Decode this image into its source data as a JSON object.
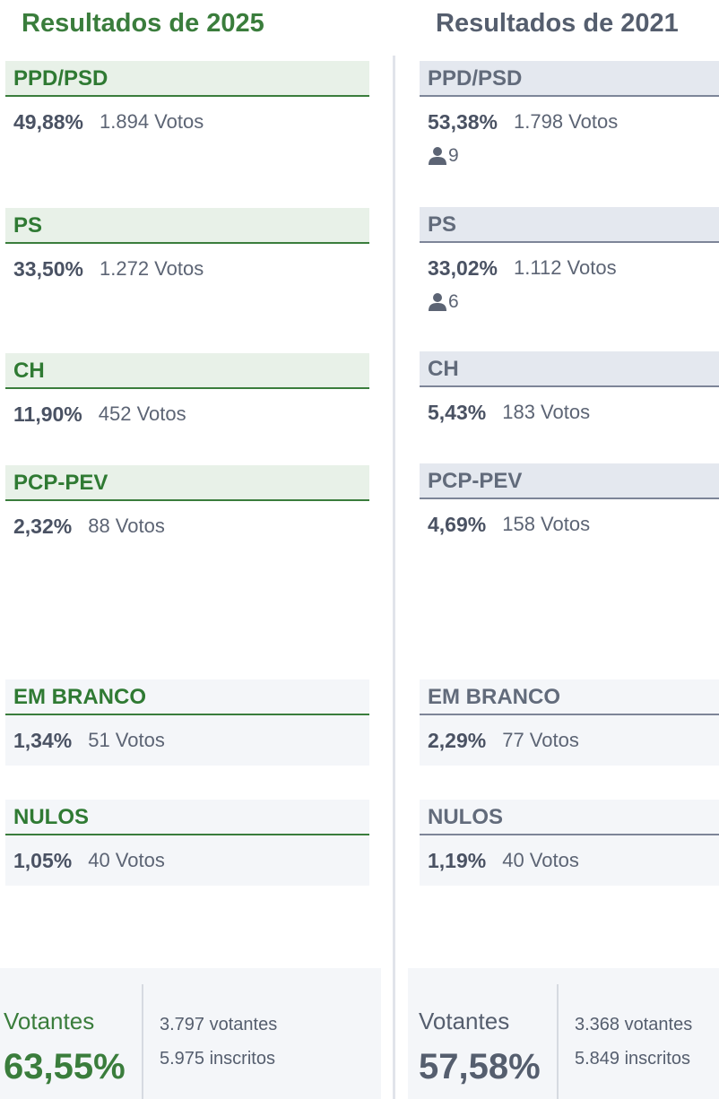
{
  "left": {
    "title": "Resultados de 2025",
    "parties": [
      {
        "name": "PPD/PSD",
        "pct": "49,88%",
        "votes": "1.894 Votos"
      },
      {
        "name": "PS",
        "pct": "33,50%",
        "votes": "1.272 Votos"
      },
      {
        "name": "CH",
        "pct": "11,90%",
        "votes": "452 Votos"
      },
      {
        "name": "PCP-PEV",
        "pct": "2,32%",
        "votes": "88 Votos"
      }
    ],
    "blank": {
      "name": "EM BRANCO",
      "pct": "1,34%",
      "votes": "51 Votos"
    },
    "null": {
      "name": "NULOS",
      "pct": "1,05%",
      "votes": "40 Votos"
    },
    "summary": {
      "label": "Votantes",
      "pct": "63,55%",
      "voters": "3.797 votantes",
      "registered": "5.975 inscritos"
    }
  },
  "right": {
    "title": "Resultados de 2021",
    "parties": [
      {
        "name": "PPD/PSD",
        "pct": "53,38%",
        "votes": "1.798 Votos",
        "seats": "9"
      },
      {
        "name": "PS",
        "pct": "33,02%",
        "votes": "1.112 Votos",
        "seats": "6"
      },
      {
        "name": "CH",
        "pct": "5,43%",
        "votes": "183 Votos"
      },
      {
        "name": "PCP-PEV",
        "pct": "4,69%",
        "votes": "158 Votos"
      }
    ],
    "blank": {
      "name": "EM BRANCO",
      "pct": "2,29%",
      "votes": "77 Votos"
    },
    "null": {
      "name": "NULOS",
      "pct": "1,19%",
      "votes": "40 Votos"
    },
    "summary": {
      "label": "Votantes",
      "pct": "57,58%",
      "voters": "3.368 votantes",
      "registered": "5.849 inscritos"
    }
  },
  "icons": {
    "seats": "person-icon"
  },
  "colors": {
    "accent_2025": "#3a7d3c",
    "accent_2021": "#626b7b"
  }
}
